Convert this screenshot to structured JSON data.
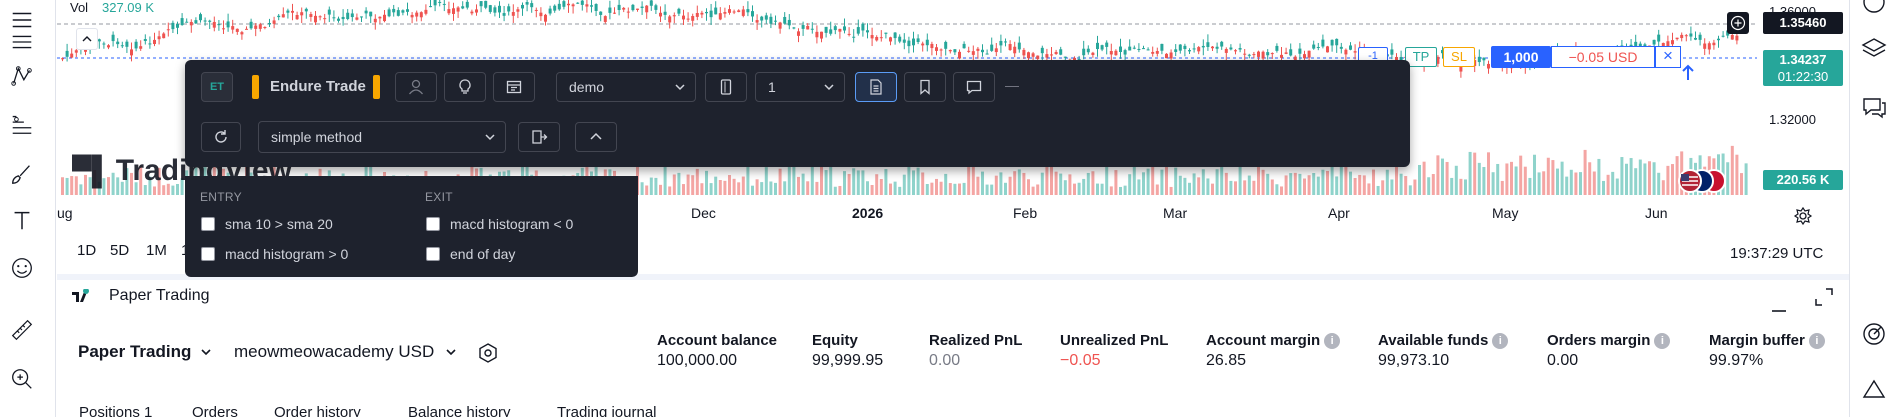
{
  "chart": {
    "volume_label": "Vol",
    "volume_value": "327.09 K",
    "prices": [
      "1.36000",
      "1.32000"
    ],
    "current_price_tag": "1.35460",
    "last_price_tag": "1.34237",
    "countdown": "01:22:30",
    "volume_tag": "220.56 K",
    "position": {
      "tp": "TP",
      "sl": "SL",
      "qty": "1,000",
      "pnl": "−0.05 USD",
      "close_symbol": "×"
    },
    "watermark": "TradingView",
    "time_labels": [
      "ug",
      "Dec",
      "2026",
      "Feb",
      "Mar",
      "Apr",
      "May",
      "Jun"
    ],
    "colors": {
      "up": "#26a69a",
      "down": "#ef5350",
      "accent": "#2962ff"
    }
  },
  "timeframes": [
    "1D",
    "5D",
    "1M",
    "1"
  ],
  "clock": "19:37:29 UTC",
  "endure": {
    "badge": "ET",
    "title": "Endure Trade",
    "account_select": "demo",
    "qty_select": "1",
    "method_select": "simple method",
    "dash": "—"
  },
  "strategy": {
    "entry_head": "ENTRY",
    "exit_head": "EXIT",
    "entry_items": [
      "sma 10 > sma 20",
      "macd histogram > 0"
    ],
    "exit_items": [
      "macd histogram < 0",
      "end of day"
    ]
  },
  "paper": {
    "tab_title": "Paper Trading",
    "broker": "Paper Trading",
    "account": "meowmeowacademy USD",
    "metrics": [
      {
        "label": "Account balance",
        "value": "100,000.00",
        "info": false
      },
      {
        "label": "Equity",
        "value": "99,999.95",
        "info": false
      },
      {
        "label": "Realized PnL",
        "value": "0.00",
        "info": false
      },
      {
        "label": "Unrealized PnL",
        "value": "−0.05",
        "info": false
      },
      {
        "label": "Account margin",
        "value": "26.85",
        "info": true
      },
      {
        "label": "Available funds",
        "value": "99,973.10",
        "info": true
      },
      {
        "label": "Orders margin",
        "value": "0.00",
        "info": true
      },
      {
        "label": "Margin buffer",
        "value": "99.97%",
        "info": true
      }
    ],
    "bottom_tabs": [
      "Positions 1",
      "Orders",
      "Order history",
      "Balance history",
      "Trading journal"
    ]
  }
}
